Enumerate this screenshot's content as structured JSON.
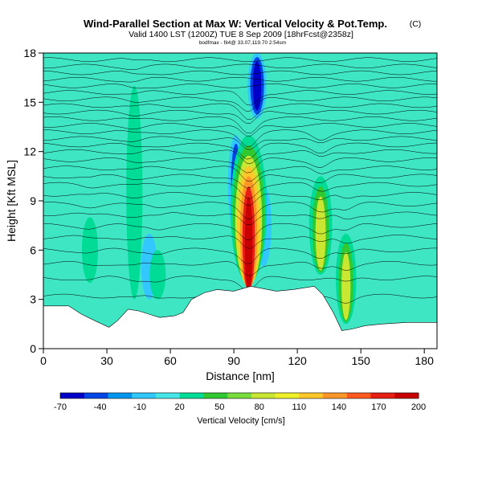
{
  "title": "Wind-Parallel Section at Max W: Vertical Velocity & Pot.Temp.",
  "title_mark": "(C)",
  "subtitle": "Valid 1400 LST (1200Z) TUE 8 Sep 2009 [18hrFcst@2358z]",
  "small_caption": "bodfmax - fit4@ 33.07,119.70 2:54sm",
  "chart_data": {
    "type": "heatmap",
    "xlabel": "Distance [nm]",
    "ylabel": "Height [Kft MSL]",
    "xlim": [
      0,
      186
    ],
    "ylim": [
      0,
      18
    ],
    "xticks": [
      0,
      30,
      60,
      90,
      120,
      150,
      180
    ],
    "yticks": [
      0,
      3,
      6,
      9,
      12,
      15,
      18
    ],
    "xtick_labels": [
      "0",
      "30",
      "60",
      "90",
      "120",
      "150",
      "180"
    ],
    "ytick_labels": [
      "0",
      "3",
      "6",
      "9",
      "12",
      "15",
      "18"
    ],
    "colorbar": {
      "label": "Vertical Velocity [cm/s]",
      "ticks": [
        "-70",
        "-40",
        "-10",
        "20",
        "50",
        "80",
        "110",
        "140",
        "170",
        "200"
      ],
      "colors": [
        "#0000c8",
        "#0046e6",
        "#0096f0",
        "#32c8ff",
        "#46e6e6",
        "#00dc96",
        "#32c832",
        "#78dc3c",
        "#c8e632",
        "#f0f028",
        "#ffc828",
        "#ff9628",
        "#ff5a1e",
        "#e61e14",
        "#c80000"
      ]
    },
    "terrain_kft": [
      [
        0,
        2.6
      ],
      [
        12,
        2.6
      ],
      [
        18,
        2.1
      ],
      [
        26,
        1.6
      ],
      [
        31,
        1.3
      ],
      [
        35,
        1.7
      ],
      [
        40,
        2.4
      ],
      [
        45,
        2.3
      ],
      [
        50,
        2.1
      ],
      [
        55,
        1.9
      ],
      [
        62,
        2.0
      ],
      [
        66,
        2.2
      ],
      [
        70,
        3.0
      ],
      [
        76,
        3.4
      ],
      [
        82,
        3.6
      ],
      [
        90,
        3.5
      ],
      [
        98,
        3.8
      ],
      [
        110,
        3.5
      ],
      [
        118,
        3.6
      ],
      [
        128,
        3.8
      ],
      [
        132,
        3.3
      ],
      [
        137,
        2.2
      ],
      [
        141,
        1.1
      ],
      [
        146,
        1.2
      ],
      [
        152,
        1.4
      ],
      [
        160,
        1.5
      ],
      [
        172,
        1.6
      ],
      [
        186,
        1.6
      ]
    ],
    "updrafts": [
      {
        "x_nm": 97,
        "base_kft": 4.0,
        "top_kft": 13.0,
        "peak_cm_s": 200
      },
      {
        "x_nm": 131,
        "base_kft": 4.5,
        "top_kft": 10.5,
        "peak_cm_s": 100
      },
      {
        "x_nm": 143,
        "base_kft": 1.5,
        "top_kft": 7.0,
        "peak_cm_s": 80
      },
      {
        "x_nm": 54,
        "base_kft": 3.0,
        "top_kft": 6.0,
        "peak_cm_s": 40
      },
      {
        "x_nm": 43,
        "base_kft": 3.0,
        "top_kft": 16.0,
        "peak_cm_s": 30
      },
      {
        "x_nm": 22,
        "base_kft": 4.0,
        "top_kft": 8.0,
        "peak_cm_s": 30
      }
    ],
    "downdrafts": [
      {
        "x_nm": 101,
        "base_kft": 14.0,
        "top_kft": 18.0,
        "peak_cm_s": -70
      },
      {
        "x_nm": 91,
        "base_kft": 7.0,
        "top_kft": 13.0,
        "peak_cm_s": -40
      },
      {
        "x_nm": 50,
        "base_kft": 3.0,
        "top_kft": 7.0,
        "peak_cm_s": -20
      },
      {
        "x_nm": 104,
        "base_kft": 5.0,
        "top_kft": 10.0,
        "peak_cm_s": -20
      }
    ],
    "isentrope_heights_kft": [
      3.2,
      4.3,
      5.2,
      6.0,
      6.8,
      7.5,
      8.2,
      8.8,
      9.4,
      10.0,
      10.5,
      11.0,
      11.5,
      12.0,
      12.4,
      12.8,
      13.2,
      13.6,
      14.0,
      14.4,
      14.8,
      15.2,
      15.6,
      16.0,
      16.4,
      16.8,
      17.2,
      17.6
    ]
  }
}
